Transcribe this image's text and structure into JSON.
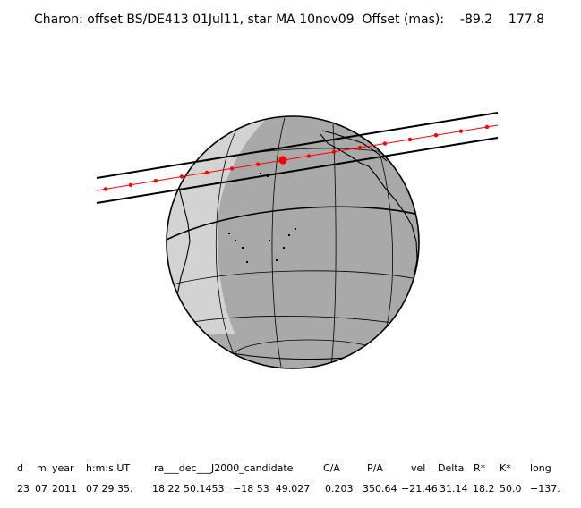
{
  "title": "Charon: offset BS/DE413 01Jul11, star MA 10nov09  Offset (mas):    -89.2    177.8",
  "colors": {
    "sphere_night": "#a9a9a9",
    "sphere_twilight": "#d3d3d3",
    "outline": "#000000",
    "track": "#ff0000",
    "background": "#ffffff"
  },
  "footer": {
    "headers": [
      "d",
      "m",
      "year",
      "h:m:s UT",
      "ra___dec___J2000_candidate",
      "C/A",
      "P/A",
      "vel",
      "Delta",
      "R*",
      "K*",
      "long"
    ],
    "values": [
      "23",
      "07",
      "2011",
      "07 29 35.",
      "18 22 50.1453",
      "−18 53  49.027",
      "0.203",
      "350.64",
      "−21.46",
      "31.14",
      "18.2",
      "50.0",
      "−137."
    ]
  }
}
